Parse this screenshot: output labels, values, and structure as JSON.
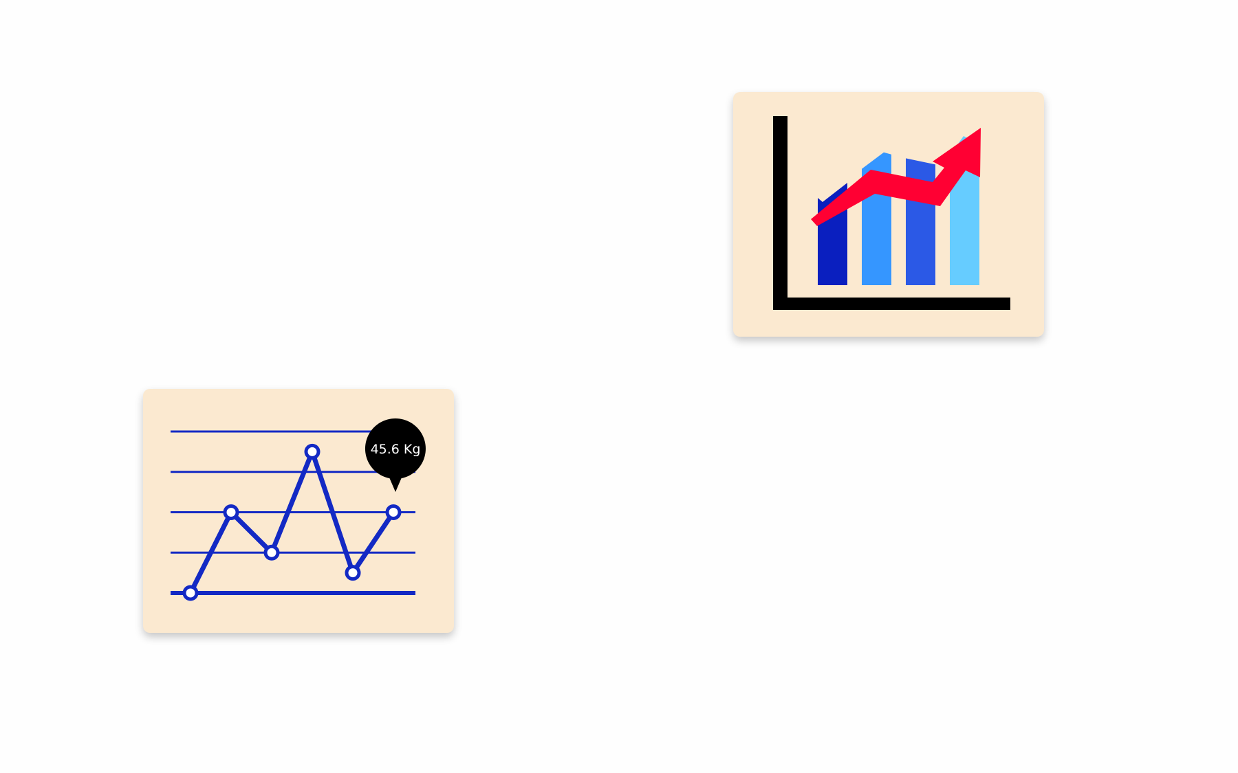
{
  "line_card": {
    "tooltip_label": "45.6 Kg",
    "colors": {
      "background": "#fbe9d0",
      "line": "#1329c4",
      "tooltip": "#000000",
      "tooltip_text": "#ffffff"
    },
    "icon": "line-chart-icon"
  },
  "bar_card": {
    "colors": {
      "background": "#fbe9d0",
      "axis": "#000000",
      "trend_arrow": "#ff0033",
      "bars": [
        "#0a1fbf",
        "#3596ff",
        "#2b59e6",
        "#66ccff"
      ]
    },
    "icon": "bar-chart-growth-icon"
  },
  "chart_data": [
    {
      "type": "line",
      "title": "",
      "values": [
        0,
        2,
        1,
        3.5,
        0.5,
        2
      ],
      "ylim": [
        0,
        4
      ],
      "grid": true,
      "annotation": "45.6 Kg"
    },
    {
      "type": "bar",
      "title": "",
      "values": [
        1.5,
        2.2,
        2.1,
        2.5
      ],
      "trend": "up"
    }
  ]
}
